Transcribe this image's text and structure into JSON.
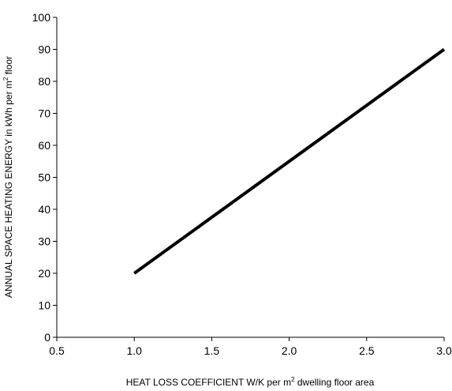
{
  "chart_data": {
    "type": "line",
    "title": "",
    "xlabel": {
      "before": "HEAT LOSS COEFFICIENT W/K per m",
      "superscript": "2",
      "after": " dwelling floor area"
    },
    "ylabel": {
      "before": "ANNUAL SPACE HEATING ENERGY in kWh per m",
      "superscript": "2",
      "after": " floor"
    },
    "xlim": [
      0.5,
      3.0
    ],
    "ylim": [
      0,
      100
    ],
    "x_ticks": [
      "0.5",
      "1.0",
      "1.5",
      "2.0",
      "2.5",
      "3.0"
    ],
    "y_ticks": [
      "0",
      "10",
      "20",
      "30",
      "40",
      "50",
      "60",
      "70",
      "80",
      "90",
      "100"
    ],
    "grid": false,
    "legend": "none",
    "line_color": "#000000",
    "series": [
      {
        "x": [
          1.0,
          3.0
        ],
        "y": [
          20,
          90
        ]
      }
    ]
  }
}
